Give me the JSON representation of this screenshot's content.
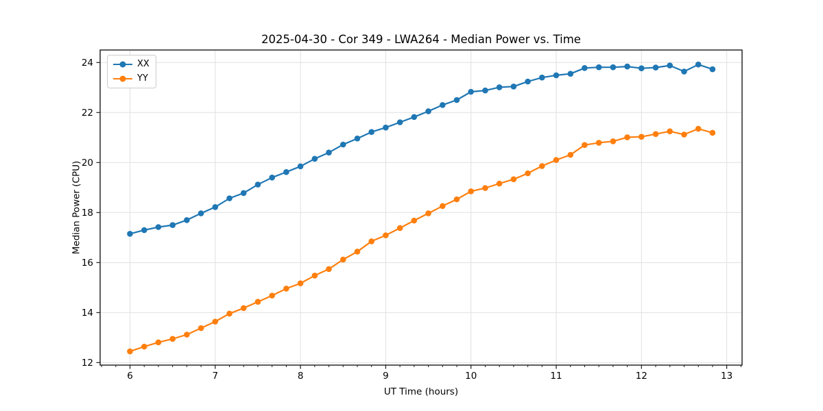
{
  "chart_data": {
    "type": "line",
    "title": "2025-04-30 - Cor 349 - LWA264 - Median Power vs. Time",
    "xlabel": "UT Time (hours)",
    "ylabel": "Median Power (CPU)",
    "xlim": [
      5.65,
      13.18
    ],
    "ylim": [
      11.9,
      24.5
    ],
    "xticks": [
      6,
      7,
      8,
      9,
      10,
      11,
      12,
      13
    ],
    "yticks": [
      12,
      14,
      16,
      18,
      20,
      22,
      24
    ],
    "x_minor_step": 0.16667,
    "grid": true,
    "legend_position": "upper-left",
    "marker": "o",
    "x": [
      6.0,
      6.167,
      6.333,
      6.5,
      6.667,
      6.833,
      7.0,
      7.167,
      7.333,
      7.5,
      7.667,
      7.833,
      8.0,
      8.167,
      8.333,
      8.5,
      8.667,
      8.833,
      9.0,
      9.167,
      9.333,
      9.5,
      9.667,
      9.833,
      10.0,
      10.167,
      10.333,
      10.5,
      10.667,
      10.833,
      11.0,
      11.167,
      11.333,
      11.5,
      11.667,
      11.833,
      12.0,
      12.167,
      12.333,
      12.5,
      12.667,
      12.833
    ],
    "series": [
      {
        "name": "XX",
        "color": "#1f77b4",
        "values": [
          17.15,
          17.3,
          17.42,
          17.5,
          17.7,
          17.97,
          18.22,
          18.57,
          18.78,
          19.12,
          19.4,
          19.62,
          19.85,
          20.15,
          20.4,
          20.72,
          20.96,
          21.22,
          21.4,
          21.61,
          21.82,
          22.05,
          22.3,
          22.5,
          22.83,
          22.88,
          23.01,
          23.04,
          23.24,
          23.4,
          23.49,
          23.55,
          23.78,
          23.81,
          23.81,
          23.84,
          23.77,
          23.8,
          23.88,
          23.64,
          23.92,
          23.73
        ]
      },
      {
        "name": "YY",
        "color": "#ff7f0e",
        "values": [
          12.45,
          12.64,
          12.81,
          12.95,
          13.12,
          13.38,
          13.64,
          13.96,
          14.18,
          14.43,
          14.68,
          14.96,
          15.17,
          15.48,
          15.74,
          16.12,
          16.44,
          16.85,
          17.09,
          17.38,
          17.68,
          17.97,
          18.26,
          18.53,
          18.85,
          18.98,
          19.16,
          19.33,
          19.57,
          19.86,
          20.1,
          20.31,
          20.7,
          20.79,
          20.85,
          21.01,
          21.03,
          21.14,
          21.25,
          21.12,
          21.35,
          21.19
        ]
      }
    ]
  },
  "colors": {
    "grid": "#e0e0e0",
    "spine": "#1a1a1a",
    "tick": "#1a1a1a",
    "text": "#000000",
    "background": "#ffffff"
  }
}
